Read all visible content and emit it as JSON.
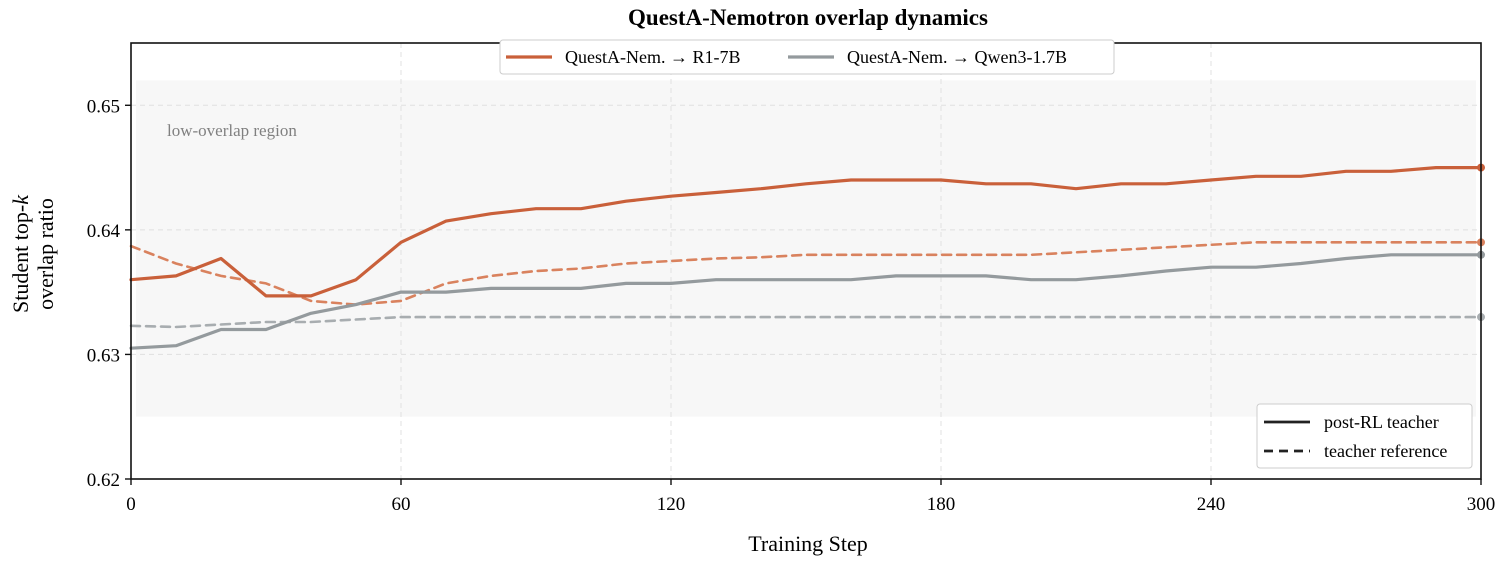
{
  "chart_data": {
    "type": "line",
    "title": "QuestA-Nemotron overlap dynamics",
    "xlabel": "Training Step",
    "ylabel_line1": "Student top-",
    "ylabel_k": "k",
    "ylabel_line2": "overlap ratio",
    "xlim": [
      0,
      300
    ],
    "ylim": [
      0.62,
      0.655
    ],
    "xticks": [
      0,
      60,
      120,
      180,
      240,
      300
    ],
    "xtick_labels": [
      "0",
      "60",
      "120",
      "180",
      "240",
      "300"
    ],
    "yticks": [
      0.62,
      0.63,
      0.64,
      0.65
    ],
    "ytick_labels": [
      "0.62",
      "0.63",
      "0.64",
      "0.65"
    ],
    "grid": true,
    "shaded_region": {
      "label": "low-overlap region",
      "y_range": [
        0.625,
        0.652
      ]
    },
    "series": [
      {
        "name": "QuestA-Nem. → R1-7B",
        "color": "#c9603a",
        "style": "solid",
        "x": [
          0,
          10,
          20,
          30,
          40,
          50,
          60,
          70,
          80,
          90,
          100,
          110,
          120,
          130,
          140,
          150,
          160,
          170,
          180,
          190,
          200,
          210,
          220,
          230,
          240,
          250,
          260,
          270,
          280,
          290,
          300
        ],
        "y": [
          0.636,
          0.6363,
          0.6377,
          0.6347,
          0.6347,
          0.636,
          0.639,
          0.6407,
          0.6413,
          0.6417,
          0.6417,
          0.6423,
          0.6427,
          0.643,
          0.6433,
          0.6437,
          0.644,
          0.644,
          0.644,
          0.6437,
          0.6437,
          0.6433,
          0.6437,
          0.6437,
          0.644,
          0.6443,
          0.6443,
          0.6447,
          0.6447,
          0.645,
          0.645
        ]
      },
      {
        "name": "QuestA-Nem. → Qwen3-1.7B",
        "color": "#949a9d",
        "style": "solid",
        "x": [
          0,
          10,
          20,
          30,
          40,
          50,
          60,
          70,
          80,
          90,
          100,
          110,
          120,
          130,
          140,
          150,
          160,
          170,
          180,
          190,
          200,
          210,
          220,
          230,
          240,
          250,
          260,
          270,
          280,
          290,
          300
        ],
        "y": [
          0.6305,
          0.6307,
          0.632,
          0.632,
          0.6333,
          0.634,
          0.635,
          0.635,
          0.6353,
          0.6353,
          0.6353,
          0.6357,
          0.6357,
          0.636,
          0.636,
          0.636,
          0.636,
          0.6363,
          0.6363,
          0.6363,
          0.636,
          0.636,
          0.6363,
          0.6367,
          0.637,
          0.637,
          0.6373,
          0.6377,
          0.638,
          0.638,
          0.638
        ]
      },
      {
        "color": "#d9825e",
        "style": "dashed",
        "x": [
          0,
          10,
          20,
          30,
          40,
          50,
          60,
          70,
          80,
          90,
          100,
          110,
          120,
          130,
          140,
          150,
          160,
          170,
          180,
          190,
          200,
          210,
          220,
          230,
          240,
          250,
          260,
          270,
          280,
          290,
          300
        ],
        "y": [
          0.6387,
          0.6373,
          0.6363,
          0.6357,
          0.6343,
          0.634,
          0.6343,
          0.6357,
          0.6363,
          0.6367,
          0.6369,
          0.6373,
          0.6375,
          0.6377,
          0.6378,
          0.638,
          0.638,
          0.638,
          0.638,
          0.638,
          0.638,
          0.6382,
          0.6384,
          0.6386,
          0.6388,
          0.639,
          0.639,
          0.639,
          0.639,
          0.639,
          0.639
        ]
      },
      {
        "color": "#a8adb0",
        "style": "dashed",
        "x": [
          0,
          10,
          20,
          30,
          40,
          50,
          60,
          70,
          80,
          90,
          100,
          110,
          120,
          130,
          140,
          150,
          160,
          170,
          180,
          190,
          200,
          210,
          220,
          230,
          240,
          250,
          260,
          270,
          280,
          290,
          300
        ],
        "y": [
          0.6323,
          0.6322,
          0.6324,
          0.6326,
          0.6326,
          0.6328,
          0.633,
          0.633,
          0.633,
          0.633,
          0.633,
          0.633,
          0.633,
          0.633,
          0.633,
          0.633,
          0.633,
          0.633,
          0.633,
          0.633,
          0.633,
          0.633,
          0.633,
          0.633,
          0.633,
          0.633,
          0.633,
          0.633,
          0.633,
          0.633,
          0.633
        ]
      }
    ],
    "legend_top": {
      "placement": "top-center",
      "entries": [
        {
          "label": "QuestA-Nem. → R1-7B",
          "color": "#c9603a"
        },
        {
          "label": "QuestA-Nem. → Qwen3-1.7B",
          "color": "#949a9d"
        }
      ]
    },
    "legend_style": {
      "placement": "lower-right",
      "entries": [
        {
          "label": "post-RL teacher",
          "style": "solid",
          "color": "#222222"
        },
        {
          "label": "teacher reference",
          "style": "dashed",
          "color": "#222222"
        }
      ]
    }
  }
}
